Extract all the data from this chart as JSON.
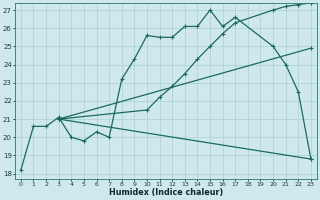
{
  "background_color": "#cfe8ec",
  "grid_color": "#a8d0d4",
  "line_color": "#1a6b5a",
  "xlabel": "Humidex (Indice chaleur)",
  "xlim_min": -0.5,
  "xlim_max": 23.5,
  "ylim_min": 17.7,
  "ylim_max": 27.4,
  "xtick_vals": [
    0,
    1,
    2,
    3,
    4,
    5,
    6,
    7,
    8,
    9,
    10,
    11,
    12,
    13,
    14,
    15,
    16,
    17,
    18,
    19,
    20,
    21,
    22,
    23
  ],
  "ytick_vals": [
    18,
    19,
    20,
    21,
    22,
    23,
    24,
    25,
    26,
    27
  ],
  "curve1_x": [
    0,
    1,
    2,
    3,
    4,
    5,
    6,
    7,
    8,
    9,
    10,
    11,
    12,
    13,
    14,
    15,
    16,
    17,
    20,
    21,
    22,
    23
  ],
  "curve1_y": [
    18.2,
    20.6,
    20.6,
    21.1,
    20.0,
    19.8,
    20.3,
    20.0,
    23.2,
    24.3,
    25.6,
    25.5,
    25.5,
    26.1,
    26.1,
    27.0,
    26.1,
    26.6,
    25.0,
    24.0,
    22.5,
    18.8
  ],
  "curve2_x": [
    3,
    10,
    11,
    12,
    13,
    14,
    15,
    16,
    17,
    20,
    21,
    22,
    23
  ],
  "curve2_y": [
    21.0,
    21.5,
    22.2,
    22.8,
    23.5,
    24.3,
    25.0,
    25.7,
    26.3,
    27.0,
    27.2,
    27.3,
    27.4
  ],
  "curve3_x": [
    3,
    23
  ],
  "curve3_y": [
    21.0,
    24.9
  ],
  "curve4_x": [
    3,
    23
  ],
  "curve4_y": [
    21.0,
    18.8
  ]
}
